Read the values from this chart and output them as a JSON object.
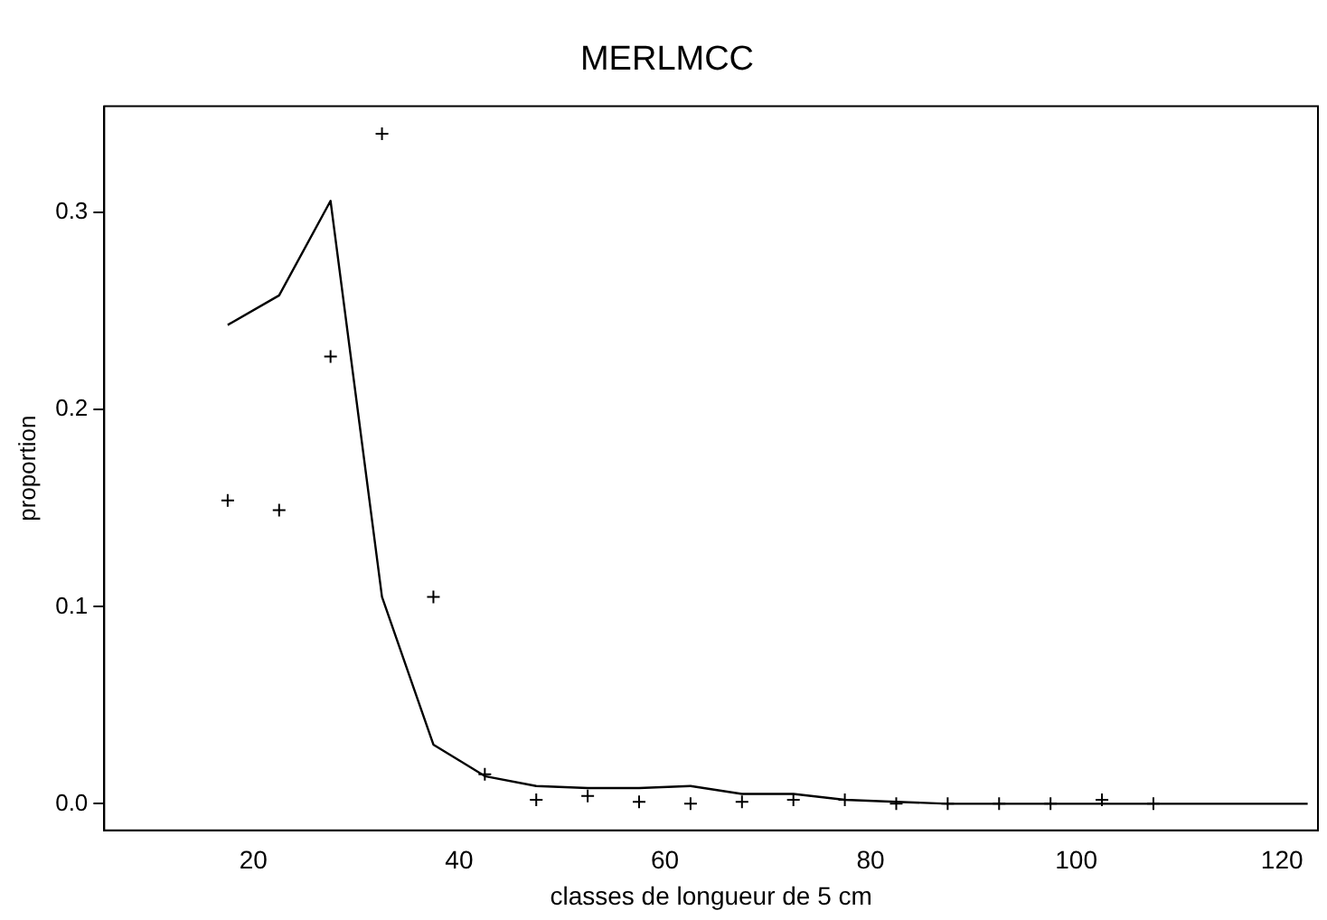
{
  "chart_data": {
    "type": "scatter",
    "title": "MERLMCC",
    "xlabel": "classes de longueur de 5 cm",
    "ylabel": "proportion",
    "xlim": [
      5.5,
      123.5
    ],
    "xticks": [
      20,
      40,
      60,
      80,
      100,
      120
    ],
    "ylim": [
      -0.0135,
      0.354
    ],
    "yticks": [
      {
        "value": 0,
        "label": "0.0"
      },
      {
        "value": 0.1,
        "label": "0.1"
      },
      {
        "value": 0.2,
        "label": "0.2"
      },
      {
        "value": 0.3,
        "label": "0.3"
      }
    ],
    "grid": false,
    "legend": false,
    "series": [
      {
        "type": "scatter",
        "color": "#000000",
        "marker": "cross",
        "x": [
          17.5,
          22.5,
          27.5,
          32.5,
          37.5,
          42.5,
          47.5,
          52.5,
          57.5,
          62.5,
          67.5,
          72.5,
          77.5,
          82.5,
          87.5,
          92.5,
          97.5,
          102.5,
          107.5
        ],
        "values": [
          0.154,
          0.149,
          0.227,
          0.34,
          0.105,
          0.015,
          0.002,
          0.004,
          0.001,
          0,
          0.001,
          0.002,
          0.002,
          0,
          0,
          0,
          0,
          0.002,
          0
        ]
      },
      {
        "type": "line",
        "color": "#000000",
        "marker": "none",
        "line_style": "solid",
        "x": [
          17.5,
          22.5,
          27.5,
          32.5,
          37.5,
          42.5,
          47.5,
          52.5,
          57.5,
          62.5,
          67.5,
          72.5,
          77.5,
          82.5,
          87.5,
          92.5,
          97.5,
          102.5,
          107.5,
          112.5,
          117.5,
          122.5
        ],
        "values": [
          0.243,
          0.258,
          0.306,
          0.105,
          0.03,
          0.014,
          0.009,
          0.008,
          0.008,
          0.009,
          0.005,
          0.005,
          0.002,
          0.001,
          0,
          0,
          0,
          0,
          0,
          0,
          0,
          0
        ]
      }
    ]
  }
}
